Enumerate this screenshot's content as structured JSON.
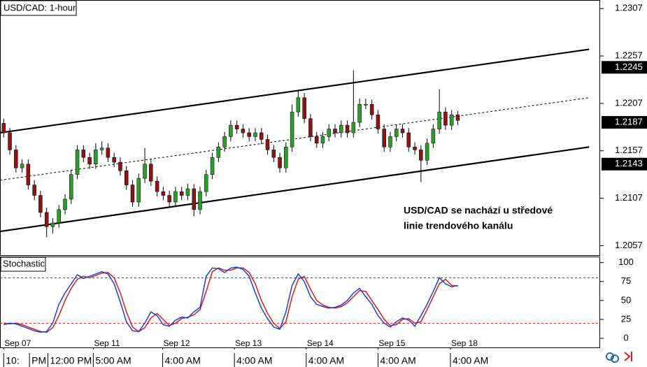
{
  "chart_data": [
    {
      "type": "candlestick",
      "title": "USD/CAD: 1-hour",
      "open": [
        1.2186,
        1.2176,
        1.2158,
        1.2139,
        1.2143,
        1.2121,
        1.211,
        1.2092,
        1.2077,
        1.2081,
        1.2095,
        1.2106,
        1.2132,
        1.2158,
        1.215,
        1.2143,
        1.2158,
        1.216,
        1.215,
        1.2145,
        1.2136,
        1.2121,
        1.2103,
        1.2128,
        1.2143,
        1.2125,
        1.2114,
        1.211,
        1.2103,
        1.2114,
        1.211,
        1.2117,
        1.2095,
        1.2114,
        1.2132,
        1.215,
        1.2161,
        1.2172,
        1.2184,
        1.218,
        1.2176,
        1.2172,
        1.2176,
        1.2169,
        1.2158,
        1.215,
        1.2139,
        1.2161,
        1.2198,
        1.2213,
        1.2191,
        1.2172,
        1.2165,
        1.2172,
        1.218,
        1.2176,
        1.2184,
        1.2176,
        1.2187,
        1.2206,
        1.2206,
        1.2195,
        1.218,
        1.2161,
        1.2172,
        1.218,
        1.2176,
        1.2161,
        1.2158,
        1.2147,
        1.2165,
        1.218,
        1.2198,
        1.2184,
        1.2195
      ],
      "high": [
        1.2191,
        1.2181,
        1.2163,
        1.2148,
        1.2148,
        1.2126,
        1.2115,
        1.2097,
        1.2086,
        1.21,
        1.2111,
        1.2137,
        1.2163,
        1.2163,
        1.2155,
        1.2165,
        1.2167,
        1.2165,
        1.2155,
        1.215,
        1.2141,
        1.2126,
        1.2133,
        1.216,
        1.2148,
        1.213,
        1.2119,
        1.2115,
        1.2119,
        1.2119,
        1.2122,
        1.2122,
        1.2119,
        1.2137,
        1.2155,
        1.2166,
        1.2177,
        1.2189,
        1.2189,
        1.2185,
        1.2181,
        1.2181,
        1.2181,
        1.2174,
        1.2163,
        1.2155,
        1.2166,
        1.2206,
        1.222,
        1.2218,
        1.2196,
        1.2177,
        1.2177,
        1.2185,
        1.2185,
        1.2189,
        1.2189,
        1.2242,
        1.2212,
        1.2212,
        1.2211,
        1.22,
        1.2185,
        1.2177,
        1.2185,
        1.2185,
        1.2181,
        1.2166,
        1.2163,
        1.217,
        1.2185,
        1.2222,
        1.2203,
        1.22,
        1.2199
      ],
      "low": [
        1.2171,
        1.2153,
        1.2134,
        1.2134,
        1.2116,
        1.2105,
        1.2087,
        1.2066,
        1.207,
        1.2076,
        1.209,
        1.2101,
        1.2127,
        1.2145,
        1.2138,
        1.2138,
        1.2153,
        1.2145,
        1.214,
        1.2131,
        1.2116,
        1.2098,
        1.2098,
        1.2123,
        1.212,
        1.2109,
        1.2105,
        1.2098,
        1.2098,
        1.2105,
        1.2105,
        1.2088,
        1.209,
        1.2109,
        1.2127,
        1.2145,
        1.2156,
        1.2167,
        1.2175,
        1.2171,
        1.2167,
        1.2167,
        1.2164,
        1.2153,
        1.2145,
        1.2134,
        1.2134,
        1.2156,
        1.2193,
        1.2186,
        1.2167,
        1.216,
        1.216,
        1.2167,
        1.2171,
        1.2171,
        1.2171,
        1.2171,
        1.2182,
        1.2201,
        1.219,
        1.2175,
        1.2156,
        1.2156,
        1.2167,
        1.2171,
        1.2156,
        1.2153,
        1.2124,
        1.2142,
        1.216,
        1.2175,
        1.2179,
        1.2179,
        1.2184
      ],
      "close": [
        1.2176,
        1.2158,
        1.2139,
        1.2143,
        1.2121,
        1.211,
        1.2092,
        1.2077,
        1.2081,
        1.2095,
        1.2106,
        1.2132,
        1.2158,
        1.215,
        1.2143,
        1.2158,
        1.216,
        1.215,
        1.2145,
        1.2136,
        1.2121,
        1.2103,
        1.2128,
        1.2143,
        1.2125,
        1.2114,
        1.211,
        1.2103,
        1.2114,
        1.211,
        1.2117,
        1.2095,
        1.2114,
        1.2132,
        1.215,
        1.2161,
        1.2172,
        1.2184,
        1.218,
        1.2176,
        1.2172,
        1.2176,
        1.2169,
        1.2158,
        1.215,
        1.2139,
        1.2161,
        1.2198,
        1.2213,
        1.2191,
        1.2172,
        1.2165,
        1.2172,
        1.218,
        1.2176,
        1.2184,
        1.2176,
        1.2187,
        1.2206,
        1.2206,
        1.2195,
        1.218,
        1.2161,
        1.2172,
        1.218,
        1.2176,
        1.2161,
        1.2158,
        1.2147,
        1.2165,
        1.218,
        1.2198,
        1.2184,
        1.2195,
        1.2189
      ],
      "up_color": "#2f9a2f",
      "down_color": "#8b1414",
      "xlim": [
        -0.6,
        97.2
      ],
      "ylim": [
        1.2047,
        1.2316
      ],
      "yticks": [
        1.2307,
        1.2257,
        1.2207,
        1.2157,
        1.2107,
        1.2057
      ],
      "price_markers": [
        1.2245,
        1.2187,
        1.2143
      ],
      "trend_lines": [
        {
          "x": [
            -0.6,
            95.4
          ],
          "y": [
            1.2176,
            1.2264
          ],
          "dashed": false
        },
        {
          "x": [
            -0.6,
            95.4
          ],
          "y": [
            1.2126,
            1.2213
          ],
          "dashed": true
        },
        {
          "x": [
            -0.6,
            95.4
          ],
          "y": [
            1.2072,
            1.2161
          ],
          "dashed": false
        }
      ],
      "annotation": [
        "USD/CAD se nachází u středové",
        "linie trendového kanálu"
      ]
    },
    {
      "type": "line",
      "title": "Stochastic",
      "series": [
        {
          "color": "#1f3fd0",
          "values": [
            18,
            20,
            19,
            16,
            13,
            10,
            8,
            9,
            20,
            45,
            60,
            72,
            84,
            79,
            82,
            85,
            88,
            85,
            72,
            48,
            22,
            10,
            9,
            20,
            35,
            30,
            18,
            16,
            24,
            28,
            27,
            35,
            41,
            82,
            93,
            92,
            87,
            93,
            94,
            91,
            82,
            60,
            40,
            26,
            15,
            12,
            35,
            70,
            85,
            75,
            55,
            45,
            42,
            40,
            41,
            44,
            50,
            60,
            66,
            55,
            45,
            30,
            20,
            15,
            22,
            27,
            24,
            16,
            30,
            45,
            62,
            80,
            72,
            68,
            70
          ]
        },
        {
          "color": "#d01f1f",
          "values": [
            20,
            19,
            20,
            18,
            15,
            12,
            9,
            8,
            14,
            30,
            50,
            66,
            78,
            82,
            80,
            83,
            86,
            87,
            80,
            60,
            35,
            15,
            9,
            14,
            27,
            33,
            25,
            17,
            20,
            26,
            28,
            31,
            38,
            62,
            88,
            93,
            90,
            90,
            93,
            93,
            87,
            72,
            50,
            33,
            20,
            13,
            22,
            55,
            78,
            82,
            65,
            50,
            44,
            41,
            40,
            42,
            47,
            55,
            63,
            62,
            50,
            38,
            25,
            17,
            18,
            25,
            26,
            20,
            22,
            38,
            55,
            72,
            78,
            70,
            69
          ]
        }
      ],
      "levels": [
        {
          "value": 80,
          "color": "#1f3fd0"
        },
        {
          "value": 20,
          "color": "#d01f1f"
        }
      ],
      "xlim": [
        -0.6,
        97.2
      ],
      "ylim": [
        -12,
        108
      ],
      "yticks": [
        100,
        75,
        50,
        25,
        0
      ],
      "xticks": [
        {
          "value": 0,
          "label": "Sep 07"
        },
        {
          "value": 14.6,
          "label": "Sep 11"
        },
        {
          "value": 25.9,
          "label": "Sep 12"
        },
        {
          "value": 37.6,
          "label": "Sep 13"
        },
        {
          "value": 49.3,
          "label": "Sep 14"
        },
        {
          "value": 61.0,
          "label": "Sep 15"
        },
        {
          "value": 72.8,
          "label": "Sep 18"
        }
      ],
      "time_labels": [
        {
          "value": 0,
          "label": "10:"
        },
        {
          "value": 4.2,
          "label": "PM"
        },
        {
          "value": 7.2,
          "label": "12:00 PM"
        },
        {
          "value": 14.6,
          "label": "5:00 AM"
        },
        {
          "value": 25.9,
          "label": "4:00 AM"
        },
        {
          "value": 37.6,
          "label": "4:00 AM"
        },
        {
          "value": 49.3,
          "label": "4:00 AM"
        },
        {
          "value": 61.0,
          "label": "4:00 AM"
        },
        {
          "value": 72.8,
          "label": "4:00 AM"
        }
      ]
    }
  ]
}
